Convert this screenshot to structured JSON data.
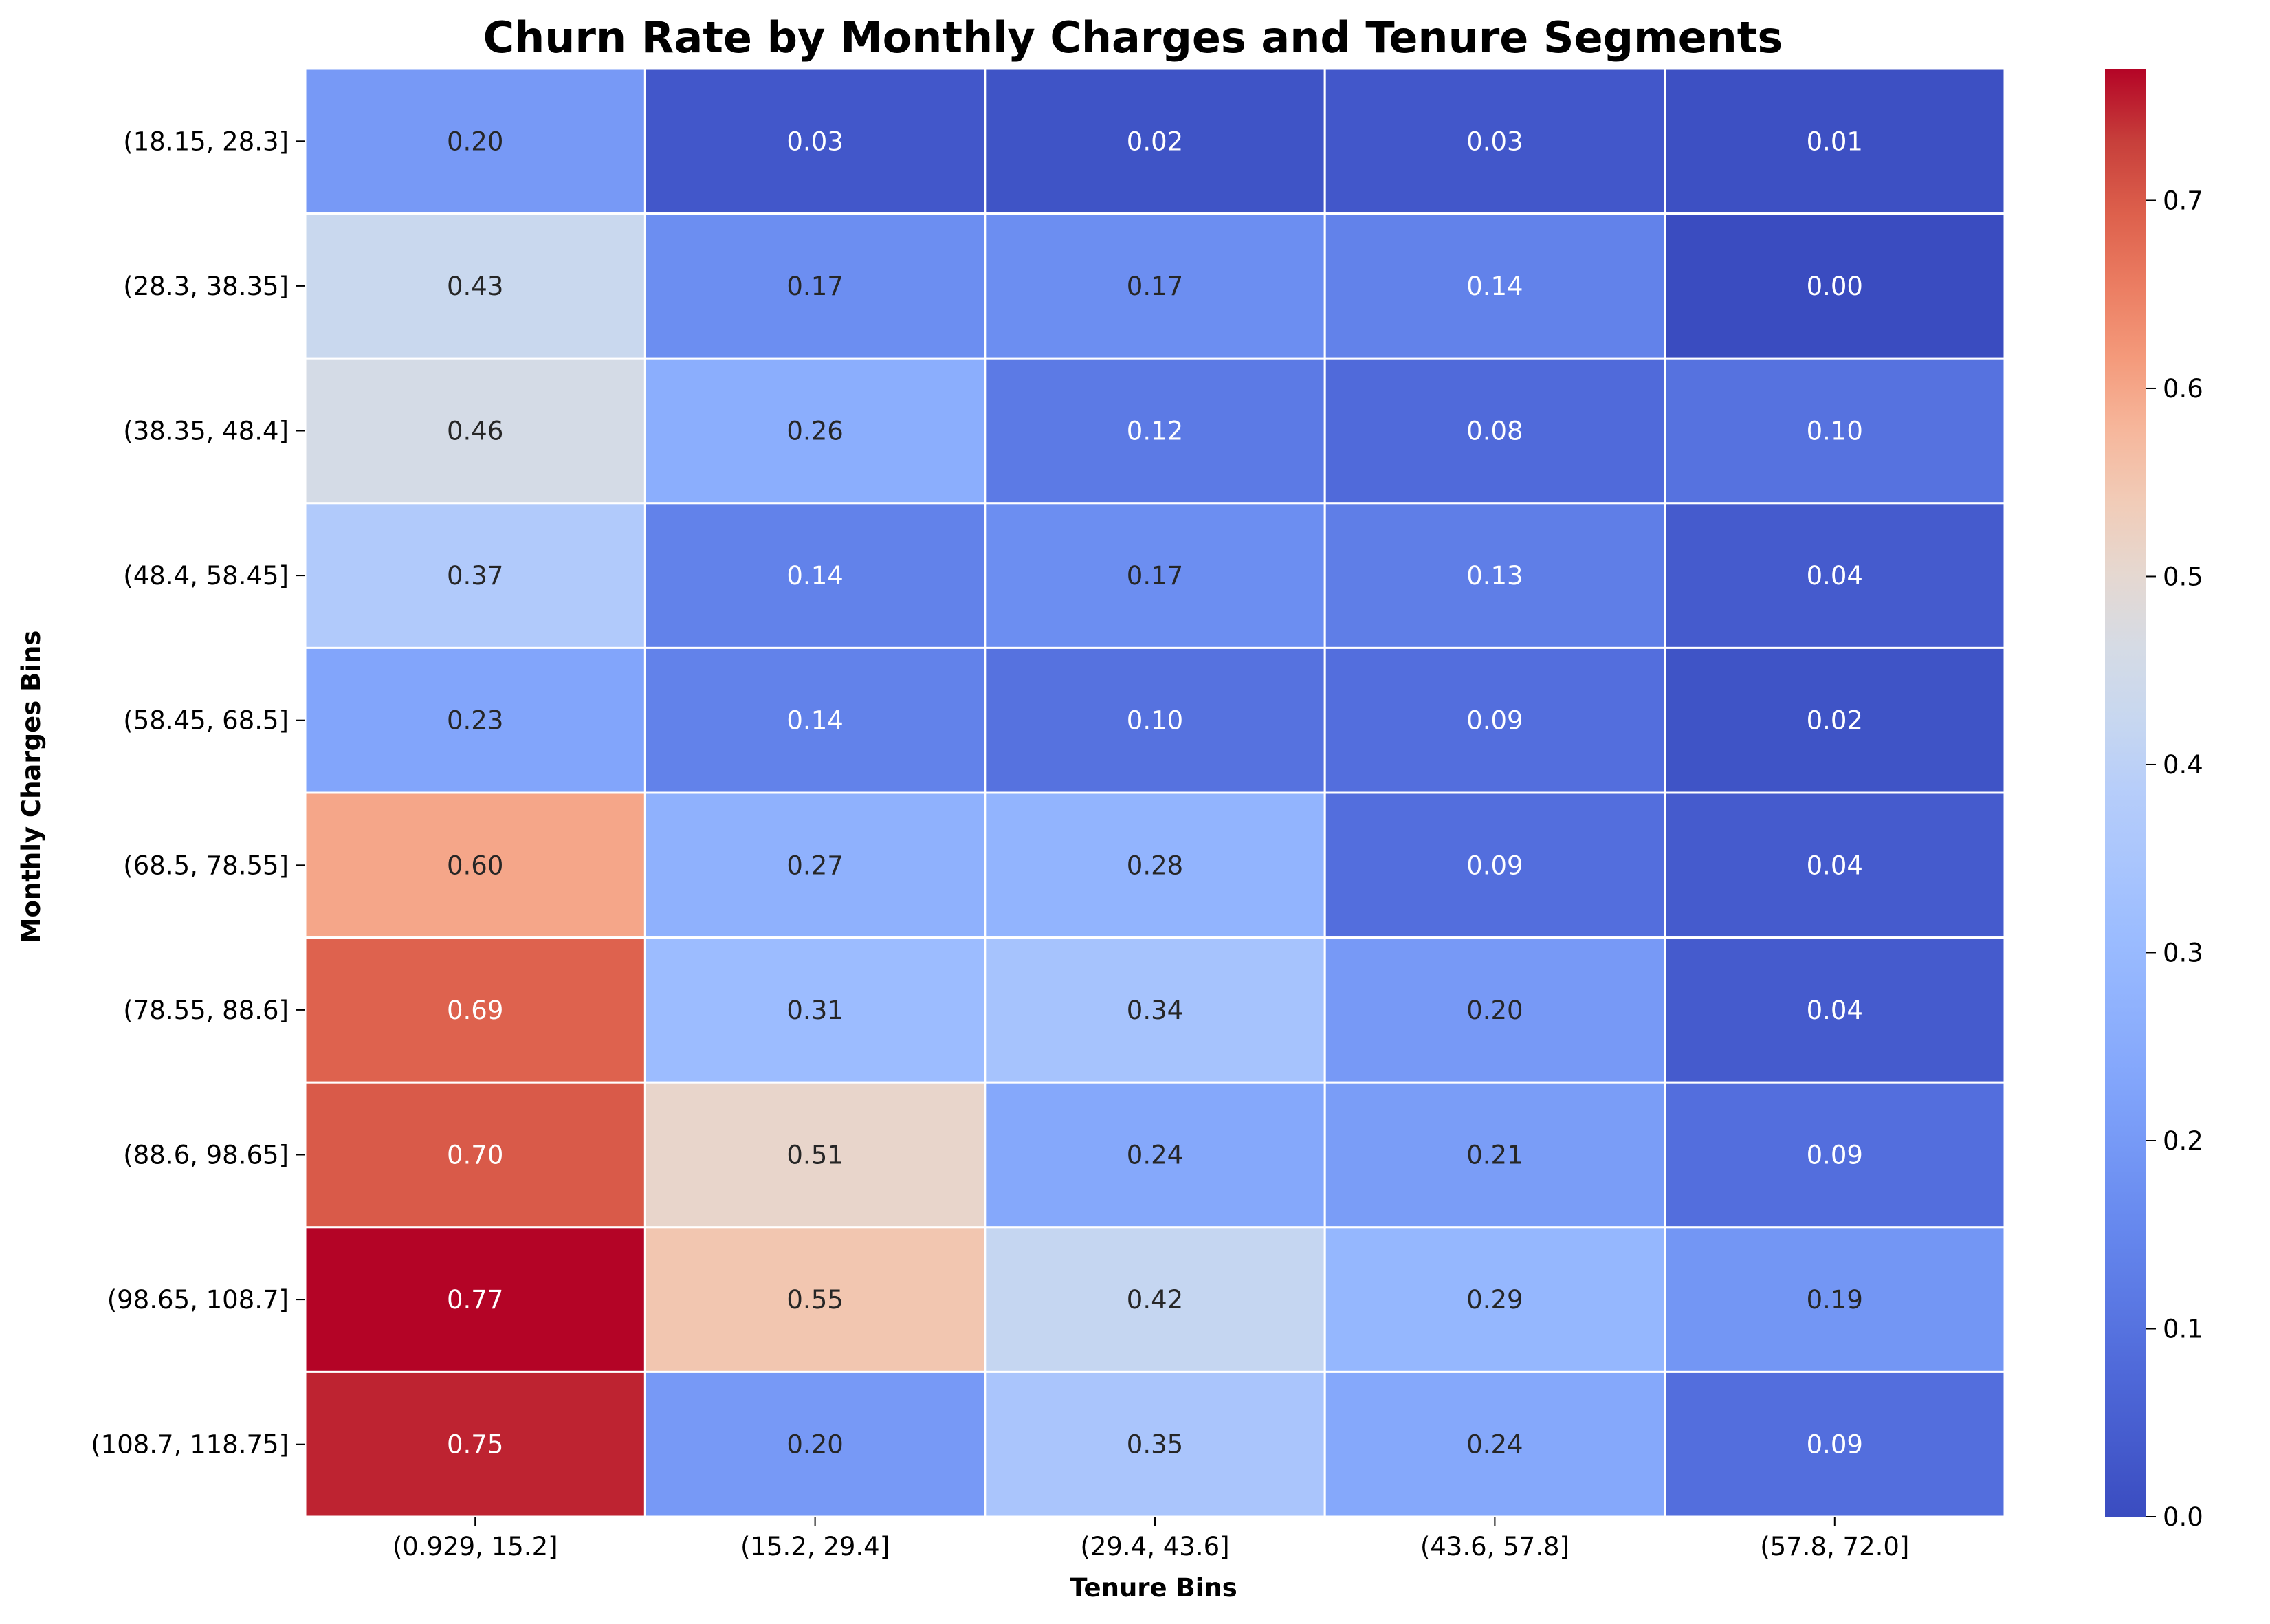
{
  "chart_data": {
    "type": "heatmap",
    "title": "Churn Rate by Monthly Charges and Tenure Segments",
    "xlabel": "Tenure Bins",
    "ylabel": "Monthly Charges Bins",
    "x_categories": [
      "(0.929, 15.2]",
      "(15.2, 29.4]",
      "(29.4, 43.6]",
      "(43.6, 57.8]",
      "(57.8, 72.0]"
    ],
    "y_categories": [
      "(18.15, 28.3]",
      "(28.3, 38.35]",
      "(38.35, 48.4]",
      "(48.4, 58.45]",
      "(58.45, 68.5]",
      "(68.5, 78.55]",
      "(78.55, 88.6]",
      "(88.6, 98.65]",
      "(98.65, 108.7]",
      "(108.7, 118.75]"
    ],
    "values": [
      [
        0.2,
        0.03,
        0.02,
        0.03,
        0.01
      ],
      [
        0.43,
        0.17,
        0.17,
        0.14,
        0.0
      ],
      [
        0.46,
        0.26,
        0.12,
        0.08,
        0.1
      ],
      [
        0.37,
        0.14,
        0.17,
        0.13,
        0.04
      ],
      [
        0.23,
        0.14,
        0.1,
        0.09,
        0.02
      ],
      [
        0.6,
        0.27,
        0.28,
        0.09,
        0.04
      ],
      [
        0.69,
        0.31,
        0.34,
        0.2,
        0.04
      ],
      [
        0.7,
        0.51,
        0.24,
        0.21,
        0.09
      ],
      [
        0.77,
        0.55,
        0.42,
        0.29,
        0.19
      ],
      [
        0.75,
        0.2,
        0.35,
        0.24,
        0.09
      ]
    ],
    "value_format_decimals": 2,
    "colormap": "coolwarm",
    "colorbar": {
      "range": [
        0.0,
        0.77
      ],
      "ticks": [
        "0.0",
        "0.1",
        "0.2",
        "0.3",
        "0.4",
        "0.5",
        "0.6",
        "0.7"
      ]
    },
    "grid": false
  }
}
